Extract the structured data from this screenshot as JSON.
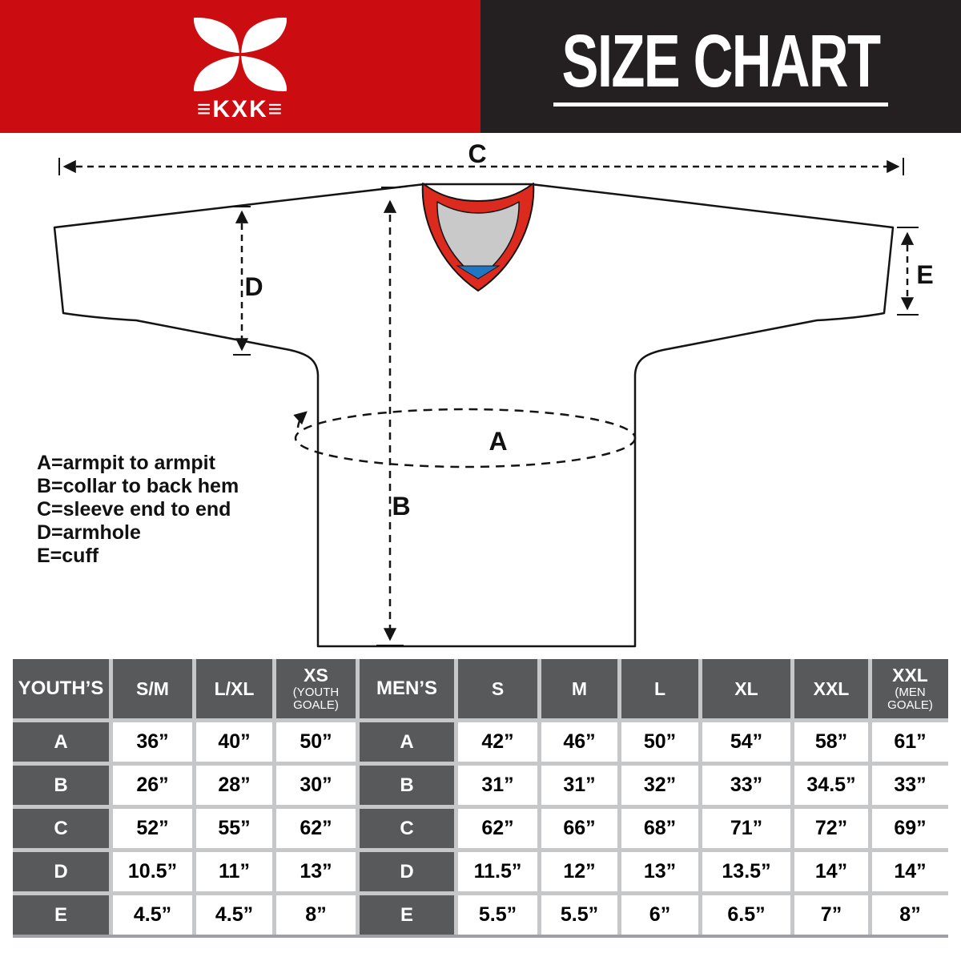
{
  "header": {
    "brand": "KXK",
    "logo_wordmark": "≡KXK≡",
    "title": "SIZE CHART",
    "colors": {
      "banner_red": "#cb0c11",
      "banner_black": "#242021"
    }
  },
  "diagram": {
    "marks": {
      "a": "A",
      "b": "B",
      "c": "C",
      "d": "D",
      "e": "E"
    },
    "legend": [
      "A=armpit to armpit",
      "B=collar to back hem",
      "C=sleeve end to end",
      "D=armhole",
      "E=cuff"
    ],
    "collar_colors": {
      "red": "#dc2b1e",
      "gray": "#c9c9c9",
      "blue": "#2176c2"
    }
  },
  "table": {
    "row_labels": [
      "A",
      "B",
      "C",
      "D",
      "E"
    ],
    "colors": {
      "header_bg": "#58595b",
      "gap": "#c6c7c9",
      "value_bg": "#ffffff"
    },
    "youth": {
      "title": "YOUTH’S",
      "columns": [
        {
          "label": "S/M",
          "sub": "",
          "values": [
            "36”",
            "26”",
            "52”",
            "10.5”",
            "4.5”"
          ]
        },
        {
          "label": "L/XL",
          "sub": "",
          "values": [
            "40”",
            "28”",
            "55”",
            "11”",
            "4.5”"
          ]
        },
        {
          "label": "XS",
          "sub": "(YOUTH GOALE)",
          "values": [
            "50”",
            "30”",
            "62”",
            "13”",
            "8”"
          ]
        }
      ]
    },
    "mens": {
      "title": "MEN’S",
      "columns": [
        {
          "label": "S",
          "sub": "",
          "values": [
            "42”",
            "31”",
            "62”",
            "11.5”",
            "5.5”"
          ]
        },
        {
          "label": "M",
          "sub": "",
          "values": [
            "46”",
            "31”",
            "66”",
            "12”",
            "5.5”"
          ]
        },
        {
          "label": "L",
          "sub": "",
          "values": [
            "50”",
            "32”",
            "68”",
            "13”",
            "6”"
          ]
        },
        {
          "label": "XL",
          "sub": "",
          "values": [
            "54”",
            "33”",
            "71”",
            "13.5”",
            "6.5”"
          ]
        },
        {
          "label": "XXL",
          "sub": "",
          "values": [
            "58”",
            "34.5”",
            "72”",
            "14”",
            "7”"
          ]
        },
        {
          "label": "XXL",
          "sub": "(MEN GOALE)",
          "values": [
            "61”",
            "33”",
            "69”",
            "14”",
            "8”"
          ]
        }
      ]
    }
  }
}
